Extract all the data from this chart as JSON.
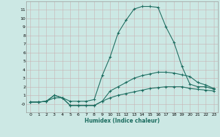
{
  "xlabel": "Humidex (Indice chaleur)",
  "xlim": [
    -0.5,
    23.5
  ],
  "ylim": [
    -1,
    12
  ],
  "xticks": [
    0,
    1,
    2,
    3,
    4,
    5,
    6,
    7,
    8,
    9,
    10,
    11,
    12,
    13,
    14,
    15,
    16,
    17,
    18,
    19,
    20,
    21,
    22,
    23
  ],
  "yticks": [
    0,
    1,
    2,
    3,
    4,
    5,
    6,
    7,
    8,
    9,
    10,
    11
  ],
  "bg_color": "#cce8e4",
  "grid_color": "#aacfcb",
  "line_color": "#1a6b5e",
  "curve1_x": [
    0,
    1,
    2,
    3,
    4,
    5,
    6,
    7,
    8,
    9,
    10,
    11,
    12,
    13,
    14,
    15,
    16,
    17,
    18,
    19,
    20,
    21,
    22,
    23
  ],
  "curve1_y": [
    0.2,
    0.2,
    0.3,
    0.7,
    0.7,
    0.3,
    0.3,
    0.3,
    0.5,
    3.3,
    5.5,
    8.3,
    9.8,
    11.1,
    11.4,
    11.4,
    11.3,
    9.0,
    7.2,
    4.4,
    2.3,
    2.0,
    2.0,
    1.7
  ],
  "curve2_x": [
    0,
    1,
    2,
    3,
    4,
    5,
    6,
    7,
    8,
    9,
    10,
    11,
    12,
    13,
    14,
    15,
    16,
    17,
    18,
    19,
    20,
    21,
    22,
    23
  ],
  "curve2_y": [
    0.2,
    0.2,
    0.3,
    1.0,
    0.7,
    -0.2,
    -0.2,
    -0.2,
    -0.2,
    0.3,
    1.5,
    2.0,
    2.5,
    3.0,
    3.3,
    3.5,
    3.7,
    3.7,
    3.6,
    3.4,
    3.2,
    2.5,
    2.2,
    1.8
  ],
  "curve3_x": [
    0,
    1,
    2,
    3,
    4,
    5,
    6,
    7,
    8,
    9,
    10,
    11,
    12,
    13,
    14,
    15,
    16,
    17,
    18,
    19,
    20,
    21,
    22,
    23
  ],
  "curve3_y": [
    0.2,
    0.2,
    0.3,
    1.0,
    0.7,
    -0.2,
    -0.2,
    -0.2,
    -0.2,
    0.3,
    0.7,
    1.0,
    1.2,
    1.4,
    1.6,
    1.8,
    1.9,
    2.0,
    2.0,
    2.0,
    1.8,
    1.7,
    1.6,
    1.5
  ]
}
